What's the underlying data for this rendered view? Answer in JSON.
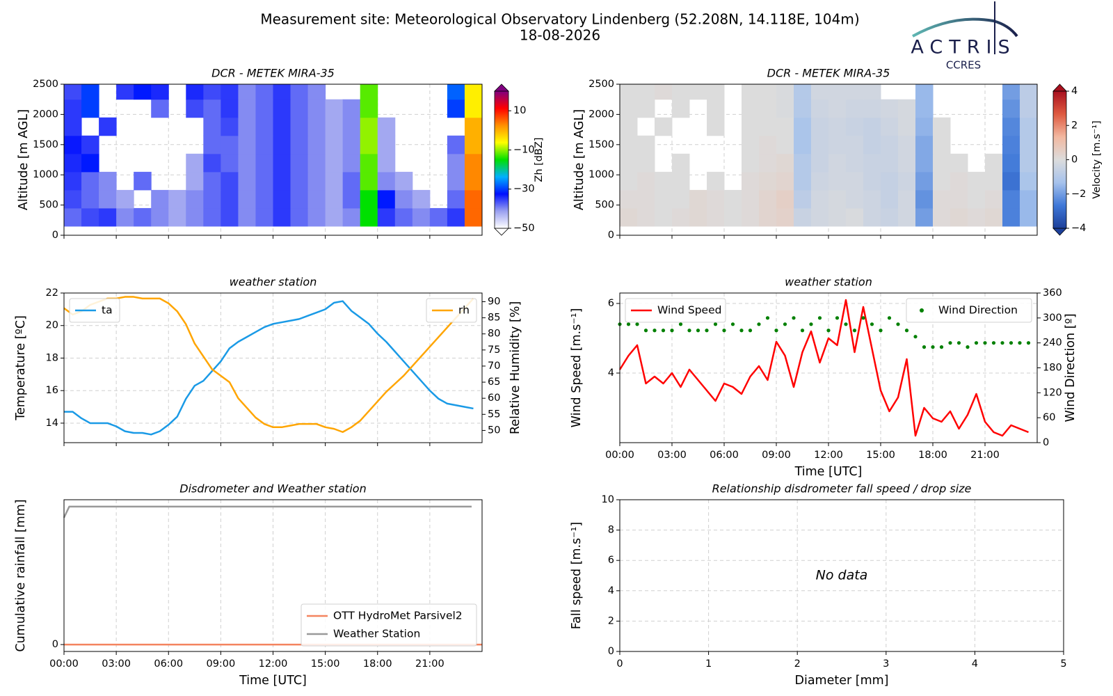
{
  "header": {
    "title": "Measurement site: Meteorological Observatory Lindenberg (52.208N, 14.118E, 104m)",
    "date": "18-08-2026",
    "logo": "ACTRIS",
    "logo_subtitle": "CCRES"
  },
  "chart_data": [
    {
      "type": "heatmap",
      "title": "DCR - METEK MIRA-35",
      "ylabel": "Altitude [m AGL]",
      "zlabel": "Zh [dBZ]",
      "xlim": [
        0,
        24
      ],
      "xticks": [
        0,
        3,
        6,
        9,
        12,
        15,
        18,
        21
      ],
      "show_xtick_labels": false,
      "ylim": [
        0,
        2500
      ],
      "yticks": [
        0,
        500,
        1000,
        1500,
        2000,
        2500
      ],
      "grid": true,
      "zlim": [
        -50,
        20
      ],
      "zticks": [
        {
          "value": -50,
          "label": "−50"
        },
        {
          "value": -30,
          "label": "−30"
        },
        {
          "value": -10,
          "label": "−10"
        },
        10
      ],
      "colormap": [
        "#ffffff",
        "#9aa0f0",
        "#0010ff",
        "#00b0ff",
        "#00e000",
        "#ffff00",
        "#ff9000",
        "#ff0000",
        "#800080"
      ],
      "x": [
        0.5,
        1.5,
        2.5,
        3.5,
        4.5,
        5.5,
        6.5,
        7.5,
        8.5,
        9.5,
        10.5,
        11.5,
        12.5,
        13.5,
        14.5,
        15.5,
        16.5,
        17.5,
        18.5,
        19.5,
        20.5,
        21.5,
        22.5,
        23.5
      ],
      "y": [
        300,
        600,
        900,
        1200,
        1500,
        1800,
        2100,
        2400
      ],
      "z": [
        [
          -38,
          -36,
          -35,
          -40,
          -38,
          -40,
          -42,
          -40,
          -38,
          -36,
          -40,
          -38,
          -35,
          -38,
          -40,
          -42,
          -40,
          -15,
          -35,
          -38,
          -40,
          -38,
          -35,
          5
        ],
        [
          -36,
          -38,
          -40,
          -42,
          null,
          -40,
          -42,
          -40,
          -38,
          -36,
          -40,
          -38,
          -35,
          -38,
          -40,
          -42,
          -38,
          -15,
          -32,
          -40,
          -42,
          null,
          -38,
          5
        ],
        [
          -35,
          -38,
          -40,
          null,
          -38,
          null,
          null,
          -42,
          -38,
          -36,
          -40,
          -38,
          -35,
          -38,
          -40,
          -42,
          -38,
          -12,
          -40,
          -42,
          null,
          null,
          -40,
          3
        ],
        [
          -34,
          -32,
          null,
          null,
          null,
          null,
          null,
          -42,
          -36,
          -38,
          -40,
          -38,
          -35,
          -38,
          -40,
          -42,
          -40,
          -12,
          -42,
          null,
          null,
          null,
          -40,
          3
        ],
        [
          -33,
          -35,
          null,
          null,
          null,
          null,
          null,
          null,
          -38,
          -38,
          -40,
          -38,
          -35,
          -38,
          -40,
          -42,
          -40,
          -10,
          -42,
          null,
          null,
          null,
          -38,
          0
        ],
        [
          -35,
          null,
          -35,
          null,
          null,
          null,
          null,
          null,
          -38,
          -36,
          -40,
          -38,
          -35,
          -38,
          -40,
          -42,
          -40,
          -10,
          -42,
          null,
          null,
          null,
          null,
          0
        ],
        [
          -35,
          -30,
          null,
          null,
          null,
          -38,
          null,
          -36,
          -38,
          -35,
          -40,
          -38,
          -35,
          -38,
          -40,
          -42,
          -40,
          -12,
          null,
          null,
          null,
          null,
          -30,
          -5
        ],
        [
          -36,
          -30,
          null,
          -35,
          -32,
          -34,
          null,
          -34,
          -36,
          -35,
          -40,
          -38,
          -35,
          -38,
          -40,
          null,
          null,
          -12,
          null,
          null,
          null,
          null,
          -28,
          -5
        ]
      ]
    },
    {
      "type": "heatmap",
      "title": "DCR - METEK MIRA-35",
      "ylabel": "Altitude [m AGL]",
      "zlabel": "Velocity [m.s⁻¹]",
      "xlim": [
        0,
        24
      ],
      "xticks": [
        0,
        3,
        6,
        9,
        12,
        15,
        18,
        21
      ],
      "show_xtick_labels": false,
      "ylim": [
        0,
        2500
      ],
      "yticks": [
        0,
        500,
        1000,
        1500,
        2000,
        2500
      ],
      "grid": true,
      "zlim": [
        -4,
        4
      ],
      "zticks": [
        {
          "value": -4,
          "label": "−4"
        },
        {
          "value": -2,
          "label": "−2"
        },
        0,
        2,
        4
      ],
      "colormap": [
        "#1c3f9a",
        "#3f78d8",
        "#a6c2ec",
        "#dcdcdc",
        "#f2b8a0",
        "#de5a40",
        "#a8101e"
      ],
      "x": [
        0.5,
        1.5,
        2.5,
        3.5,
        4.5,
        5.5,
        6.5,
        7.5,
        8.5,
        9.5,
        10.5,
        11.5,
        12.5,
        13.5,
        14.5,
        15.5,
        16.5,
        17.5,
        18.5,
        19.5,
        20.5,
        21.5,
        22.5,
        23.5
      ],
      "y": [
        300,
        600,
        900,
        1200,
        1500,
        1800,
        2100,
        2400
      ],
      "z": [
        [
          0.2,
          0.1,
          0.0,
          0.1,
          0.2,
          0.1,
          0.0,
          0.1,
          0.3,
          0.4,
          -0.5,
          -0.3,
          -0.2,
          -0.1,
          -0.4,
          -0.5,
          -0.3,
          -2.0,
          0.1,
          0.2,
          0.1,
          0.2,
          -2.5,
          -1.5
        ],
        [
          0.1,
          0.1,
          0.0,
          0.0,
          0.2,
          0.1,
          0.0,
          0.1,
          0.3,
          0.5,
          -0.8,
          -0.3,
          -0.2,
          -0.3,
          -0.4,
          -0.6,
          -0.3,
          -2.2,
          0.1,
          0.1,
          0.0,
          0.1,
          -2.5,
          -1.5
        ],
        [
          0.0,
          0.1,
          0.0,
          0.0,
          null,
          0.0,
          null,
          0.1,
          0.2,
          0.3,
          -1.0,
          -0.4,
          -0.3,
          -0.3,
          -0.5,
          -0.6,
          -0.4,
          -2.0,
          0.0,
          0.1,
          0.0,
          0.0,
          -2.8,
          -1.2
        ],
        [
          0.0,
          0.0,
          null,
          0.0,
          null,
          null,
          null,
          0.0,
          0.1,
          0.2,
          -1.0,
          -0.5,
          -0.3,
          -0.4,
          -0.5,
          -0.5,
          -0.3,
          -1.8,
          0.0,
          0.0,
          null,
          0.0,
          -2.6,
          -1.0
        ],
        [
          0.0,
          0.0,
          null,
          null,
          null,
          null,
          null,
          0.0,
          0.1,
          0.0,
          -1.2,
          -0.5,
          -0.4,
          -0.4,
          -0.6,
          -0.5,
          -0.3,
          -1.8,
          0.0,
          null,
          null,
          null,
          -2.5,
          -1.0
        ],
        [
          0.0,
          null,
          0.0,
          null,
          null,
          0.0,
          null,
          0.0,
          0.0,
          0.0,
          -1.2,
          -0.5,
          -0.4,
          -0.5,
          -0.6,
          -0.4,
          -0.2,
          -1.6,
          0.0,
          null,
          null,
          null,
          -2.4,
          -1.0
        ],
        [
          0.0,
          0.0,
          null,
          0.0,
          null,
          0.0,
          null,
          0.0,
          0.0,
          -0.1,
          -1.0,
          -0.4,
          -0.3,
          -0.4,
          -0.4,
          -0.3,
          -0.2,
          -1.5,
          null,
          null,
          null,
          null,
          -2.2,
          -0.8
        ],
        [
          0.0,
          0.0,
          0.1,
          0.0,
          0.0,
          0.0,
          null,
          0.0,
          0.0,
          -0.1,
          -1.0,
          -0.3,
          -0.3,
          -0.3,
          -0.3,
          null,
          null,
          -1.5,
          null,
          null,
          null,
          null,
          -2.0,
          -0.8
        ]
      ]
    },
    {
      "type": "line",
      "title": "weather station",
      "ylabel": "Temperature [ºC]",
      "y2label": "Relative Humidity [%]",
      "xlim": [
        0,
        24
      ],
      "xticks": [
        0,
        3,
        6,
        9,
        12,
        15,
        18,
        21
      ],
      "show_xtick_labels": false,
      "ylim": [
        12.8,
        22
      ],
      "yticks": [
        14,
        16,
        18,
        20,
        22
      ],
      "y2lim": [
        46.2,
        92.7
      ],
      "y2ticks": [
        50,
        55,
        60,
        65,
        70,
        75,
        80,
        85,
        90
      ],
      "grid": true,
      "x": [
        0,
        0.5,
        1,
        1.5,
        2,
        2.5,
        3,
        3.5,
        4,
        4.5,
        5,
        5.5,
        6,
        6.5,
        7,
        7.5,
        8,
        8.5,
        9,
        9.5,
        10,
        10.5,
        11,
        11.5,
        12,
        12.5,
        13,
        13.5,
        14,
        14.5,
        15,
        15.5,
        16,
        16.5,
        17,
        17.5,
        18,
        18.5,
        19,
        19.5,
        20,
        20.5,
        21,
        21.5,
        22,
        22.5,
        23,
        23.5
      ],
      "series": [
        {
          "name": "ta",
          "color": "#1a9ae6",
          "legend": "upper left",
          "values": [
            14.7,
            14.7,
            14.3,
            14.0,
            14.0,
            14.0,
            13.8,
            13.5,
            13.4,
            13.4,
            13.3,
            13.5,
            13.9,
            14.4,
            15.5,
            16.3,
            16.6,
            17.2,
            17.8,
            18.6,
            19.0,
            19.3,
            19.6,
            19.9,
            20.1,
            20.2,
            20.3,
            20.4,
            20.6,
            20.8,
            21.0,
            21.4,
            21.5,
            20.9,
            20.5,
            20.1,
            19.5,
            19.0,
            18.4,
            17.8,
            17.2,
            16.6,
            16.0,
            15.5,
            15.2,
            15.1,
            15.0,
            14.9
          ]
        },
        {
          "name": "rh",
          "color": "#ffa500",
          "legend": "upper right",
          "axis": "y2",
          "values": [
            88,
            86,
            87,
            89,
            90,
            91,
            91,
            91.5,
            91.5,
            91,
            91,
            91,
            89.5,
            87,
            83,
            77,
            73,
            69,
            67,
            65,
            60,
            57,
            54,
            52,
            51,
            51,
            51.5,
            52,
            52,
            52,
            51,
            50.5,
            49.5,
            51,
            53,
            56,
            59,
            62,
            64.5,
            67,
            70,
            73,
            76,
            79,
            82,
            85,
            88,
            91
          ]
        }
      ]
    },
    {
      "type": "line",
      "title": "weather station",
      "xlabel": "Time [UTC]",
      "ylabel": "Wind Speed [m.s⁻¹]",
      "y2label": "Wind Direction [º]",
      "xlim": [
        0,
        24
      ],
      "xticks": [
        {
          "value": 0,
          "label": "00:00"
        },
        {
          "value": 3,
          "label": "03:00"
        },
        {
          "value": 6,
          "label": "06:00"
        },
        {
          "value": 9,
          "label": "09:00"
        },
        {
          "value": 12,
          "label": "12:00"
        },
        {
          "value": 15,
          "label": "15:00"
        },
        {
          "value": 18,
          "label": "18:00"
        },
        {
          "value": 21,
          "label": "21:00"
        }
      ],
      "ylim": [
        2.0,
        6.3
      ],
      "yticks": [
        4,
        6
      ],
      "y2lim": [
        0,
        360
      ],
      "y2ticks": [
        0,
        60,
        120,
        180,
        240,
        300,
        360
      ],
      "grid": true,
      "x": [
        0,
        0.5,
        1,
        1.5,
        2,
        2.5,
        3,
        3.5,
        4,
        4.5,
        5,
        5.5,
        6,
        6.5,
        7,
        7.5,
        8,
        8.5,
        9,
        9.5,
        10,
        10.5,
        11,
        11.5,
        12,
        12.5,
        13,
        13.5,
        14,
        14.5,
        15,
        15.5,
        16,
        16.5,
        17,
        17.5,
        18,
        18.5,
        19,
        19.5,
        20,
        20.5,
        21,
        21.5,
        22,
        22.5,
        23,
        23.5
      ],
      "series": [
        {
          "name": "Wind Speed",
          "color": "#ff0000",
          "legend": "upper left",
          "values": [
            4.1,
            4.5,
            4.8,
            3.7,
            3.9,
            3.7,
            4.0,
            3.6,
            4.1,
            3.8,
            3.5,
            3.2,
            3.7,
            3.6,
            3.4,
            3.9,
            4.2,
            3.8,
            4.9,
            4.5,
            3.6,
            4.6,
            5.2,
            4.3,
            5.0,
            4.8,
            6.1,
            4.6,
            5.9,
            4.7,
            3.5,
            2.9,
            3.3,
            4.4,
            2.2,
            3.0,
            2.7,
            2.6,
            2.9,
            2.4,
            2.8,
            3.4,
            2.6,
            2.3,
            2.2,
            2.5,
            2.4,
            2.3
          ]
        },
        {
          "name": "Wind Direction",
          "color": "#008000",
          "legend": "upper right",
          "axis": "y2",
          "marker": "dot",
          "values": [
            285,
            285,
            285,
            270,
            270,
            270,
            270,
            285,
            270,
            270,
            270,
            285,
            270,
            285,
            270,
            270,
            285,
            300,
            270,
            285,
            300,
            270,
            285,
            300,
            270,
            300,
            285,
            270,
            300,
            285,
            270,
            300,
            285,
            270,
            255,
            230,
            230,
            230,
            240,
            240,
            230,
            240,
            240,
            240,
            240,
            240,
            240,
            240
          ]
        }
      ]
    },
    {
      "type": "line",
      "title": "Disdrometer and Weather station",
      "xlabel": "Time [UTC]",
      "ylabel": "Cumulative rainfall [mm]",
      "xlim": [
        0,
        24
      ],
      "xticks": [
        {
          "value": 0,
          "label": "00:00"
        },
        {
          "value": 3,
          "label": "03:00"
        },
        {
          "value": 6,
          "label": "06:00"
        },
        {
          "value": 9,
          "label": "09:00"
        },
        {
          "value": 12,
          "label": "12:00"
        },
        {
          "value": 15,
          "label": "15:00"
        },
        {
          "value": 18,
          "label": "18:00"
        },
        {
          "value": 21,
          "label": "21:00"
        }
      ],
      "ylim": [
        -0.005,
        0.105
      ],
      "yticks": [
        0
      ],
      "grid": true,
      "series": [
        {
          "name": "OTT HydroMet Parsivel2",
          "color": "#f4845f",
          "legend": "lower right",
          "x": [
            0,
            24
          ],
          "values": [
            0,
            0
          ]
        },
        {
          "name": "Weather Station",
          "color": "#999999",
          "legend": "lower right",
          "x": [
            0,
            0.3,
            23.4
          ],
          "values": [
            0.092,
            0.1,
            0.1
          ]
        }
      ]
    },
    {
      "type": "scatter",
      "title": "Relationship disdrometer fall speed / drop size",
      "xlabel": "Diameter [mm]",
      "ylabel": "Fall speed [m.s⁻¹]",
      "xlim": [
        0,
        5
      ],
      "xticks": [
        0,
        1,
        2,
        3,
        4,
        5
      ],
      "ylim": [
        0,
        10
      ],
      "yticks": [
        0,
        2,
        4,
        6,
        8,
        10
      ],
      "grid": true,
      "annotation": "No data"
    }
  ]
}
